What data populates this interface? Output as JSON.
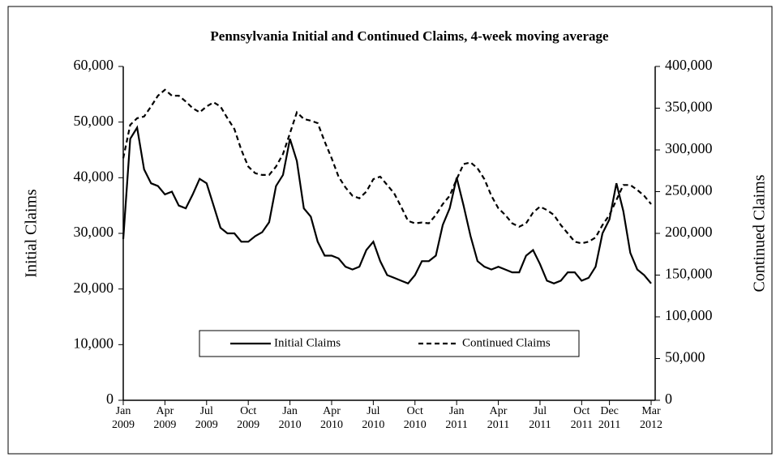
{
  "chart_data": {
    "type": "line",
    "title": "Pennsylvania Initial and Continued  Claims, 4-week moving average",
    "y_label": "Initial Claims",
    "y2_label": "Continued Claims",
    "categories": [
      "Jan 2009",
      null,
      null,
      null,
      null,
      null,
      "Apr 2009",
      null,
      null,
      null,
      null,
      null,
      "Jul 2009",
      null,
      null,
      null,
      null,
      null,
      "Oct 2009",
      null,
      null,
      null,
      null,
      null,
      "Jan 2010",
      null,
      null,
      null,
      null,
      null,
      "Apr 2010",
      null,
      null,
      null,
      null,
      null,
      "Jul 2010",
      null,
      null,
      null,
      null,
      null,
      "Oct 2010",
      null,
      null,
      null,
      null,
      null,
      "Jan 2011",
      null,
      null,
      null,
      null,
      null,
      "Apr 2011",
      null,
      null,
      null,
      null,
      null,
      "Jul 2011",
      null,
      null,
      null,
      null,
      null,
      "Oct 2011",
      null,
      null,
      null,
      "Dec 2011",
      null,
      null,
      null,
      null,
      null,
      "Mar 2012"
    ],
    "series": [
      {
        "name": "Initial Claims",
        "color": "#000000",
        "linestyle": "solid",
        "values": [
          29000,
          47000,
          49000,
          41500,
          39000,
          38500,
          37000,
          37500,
          35000,
          34500,
          37000,
          39800,
          39000,
          35000,
          31000,
          30000,
          30000,
          28500,
          28500,
          29500,
          30200,
          32000,
          38500,
          40500,
          47000,
          43000,
          34500,
          33000,
          28500,
          26000,
          26000,
          25500,
          24000,
          23500,
          24000,
          27000,
          28500,
          25000,
          22500,
          22000,
          21500,
          21000,
          22500,
          25000,
          25000,
          26000,
          31500,
          34500,
          40000,
          35000,
          29500,
          25000,
          24000,
          23500,
          24000,
          23500,
          23000,
          23000,
          26000,
          27000,
          24500,
          21500,
          21000,
          21500,
          23000,
          23000,
          21500,
          22000,
          24000,
          30000,
          32500,
          39000,
          34000,
          26500,
          23500,
          22500,
          21000
        ]
      },
      {
        "name": "Continued Claims",
        "color": "#000000",
        "linestyle": "dashed",
        "axis": "y2",
        "values": [
          290000,
          330000,
          338000,
          340000,
          352000,
          365000,
          372000,
          365000,
          365000,
          358000,
          350000,
          345000,
          352000,
          357000,
          352000,
          338000,
          325000,
          300000,
          280000,
          272000,
          270000,
          270000,
          280000,
          295000,
          320000,
          345000,
          337000,
          335000,
          332000,
          310000,
          290000,
          268000,
          255000,
          245000,
          242000,
          250000,
          265000,
          268000,
          258000,
          248000,
          232000,
          215000,
          212000,
          213000,
          212000,
          222000,
          235000,
          245000,
          265000,
          283000,
          285000,
          278000,
          265000,
          245000,
          230000,
          222000,
          212000,
          208000,
          212000,
          225000,
          232000,
          228000,
          222000,
          210000,
          200000,
          190000,
          188000,
          190000,
          195000,
          210000,
          222000,
          240000,
          258000,
          258000,
          252000,
          245000,
          235000
        ]
      }
    ],
    "ylim": [
      0,
      60000
    ],
    "yticks": [
      0,
      {
        "value": 10000,
        "label": "10,000"
      },
      {
        "value": 20000,
        "label": "20,000"
      },
      {
        "value": 30000,
        "label": "30,000"
      },
      {
        "value": 40000,
        "label": "40,000"
      },
      {
        "value": 50000,
        "label": "50,000"
      },
      {
        "value": 60000,
        "label": "60,000"
      }
    ],
    "y2lim": [
      0,
      400000
    ],
    "y2ticks": [
      0,
      {
        "value": 50000,
        "label": "50,000"
      },
      {
        "value": 100000,
        "label": "100,000"
      },
      {
        "value": 150000,
        "label": "150,000"
      },
      {
        "value": 200000,
        "label": "200,000"
      },
      {
        "value": 250000,
        "label": "250,000"
      },
      {
        "value": 300000,
        "label": "300,000"
      },
      {
        "value": 350000,
        "label": "350,000"
      },
      {
        "value": 400000,
        "label": "400,000"
      }
    ],
    "grid": false,
    "legend": "lower center"
  }
}
